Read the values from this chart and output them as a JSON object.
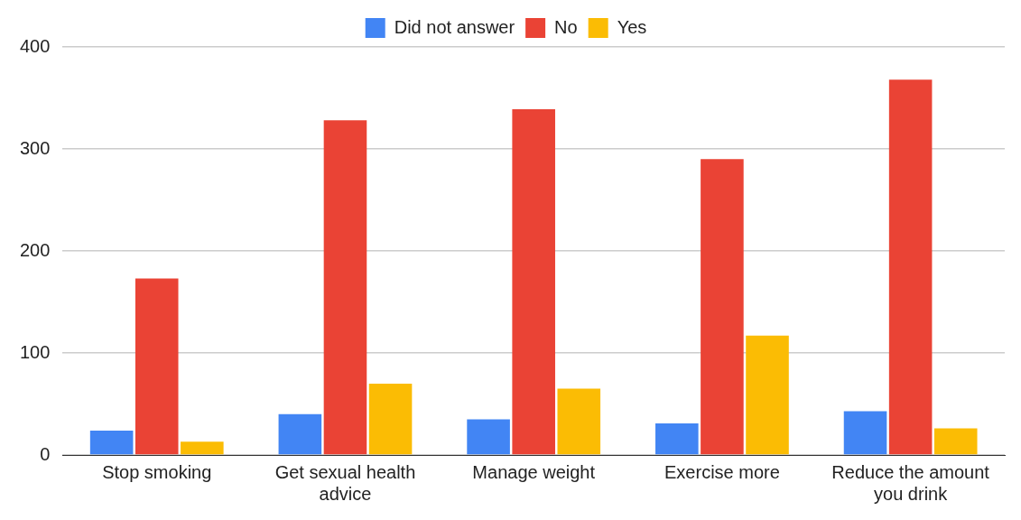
{
  "chart_data": {
    "type": "bar",
    "categories": [
      "Stop smoking",
      "Get sexual health advice",
      "Manage weight",
      "Exercise more",
      "Reduce the amount you drink"
    ],
    "series": [
      {
        "name": "Did not answer",
        "color": "#4285f4",
        "values": [
          24,
          40,
          35,
          31,
          43
        ]
      },
      {
        "name": "No",
        "color": "#ea4335",
        "values": [
          173,
          328,
          339,
          290,
          368
        ]
      },
      {
        "name": "Yes",
        "color": "#fbbc04",
        "values": [
          13,
          70,
          65,
          117,
          26
        ]
      }
    ],
    "ylim": [
      0,
      400
    ],
    "yticks": [
      0,
      100,
      200,
      300,
      400
    ],
    "grid": "y",
    "legend": "top"
  }
}
